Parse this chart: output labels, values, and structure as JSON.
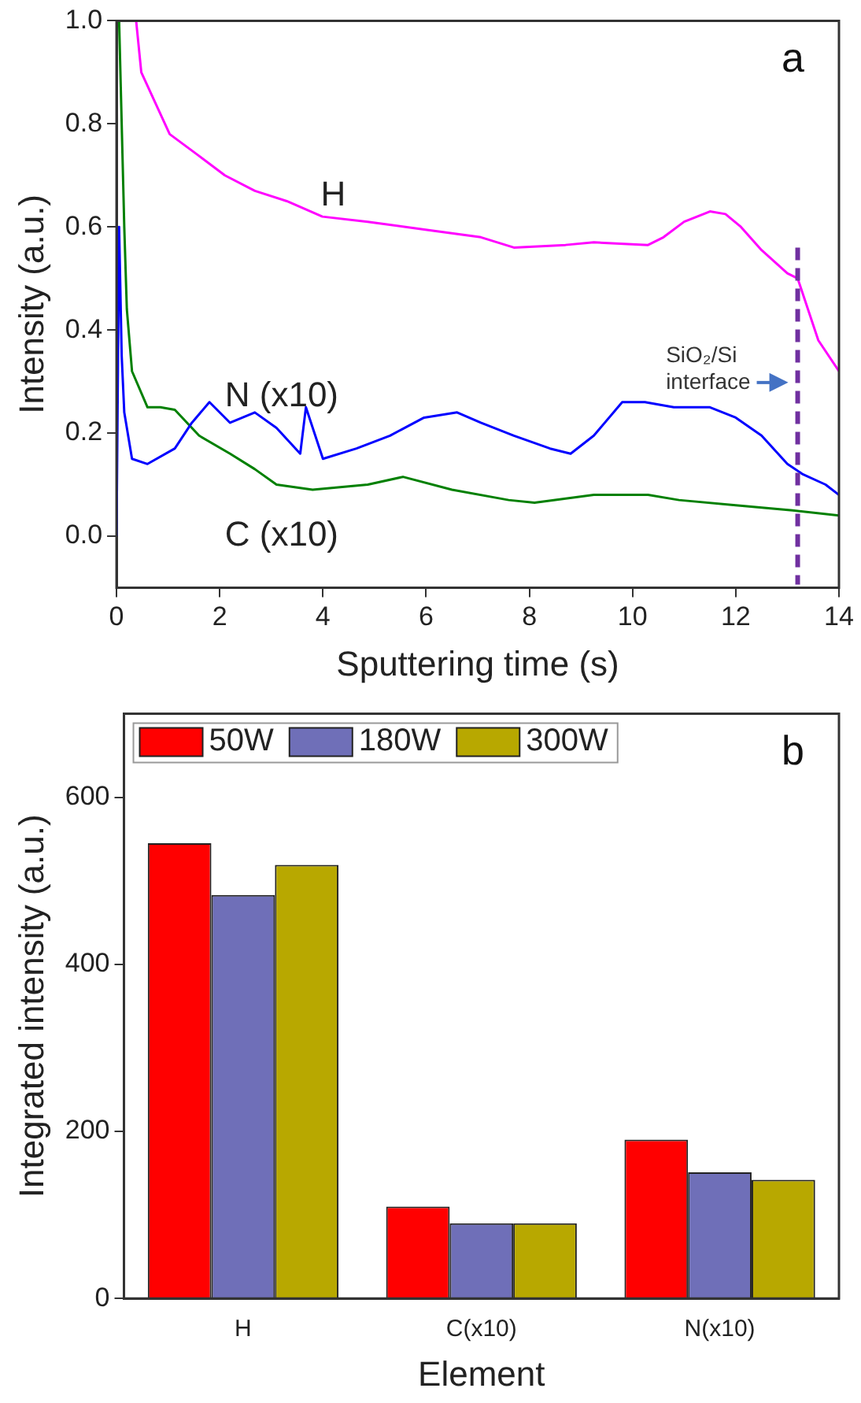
{
  "chart_data": [
    {
      "type": "line",
      "xlabel": "Sputtering time (s)",
      "ylabel": "Intensity (a.u.)",
      "annotations": [
        "a"
      ],
      "xlim": [
        0,
        14
      ],
      "ylim": [
        -0.1,
        1.0
      ],
      "xticks": [
        0,
        2,
        4,
        6,
        8,
        10,
        12,
        14
      ],
      "yticks": [
        {
          "value": 0,
          "label": "0.0"
        },
        0.2,
        0.4,
        0.6,
        0.8,
        {
          "value": 1,
          "label": "1.0"
        }
      ],
      "grid": false,
      "legend": false,
      "marker": "none",
      "line_style": "solid",
      "ref_lines": [
        {
          "axis": "x",
          "value": 13.2,
          "label": "SiO₂/Si interface",
          "color": "#7030a0",
          "line_style": "dashed"
        }
      ],
      "series": [
        {
          "name": "H",
          "color": "#ff00ff",
          "x": [
            0.38,
            0.48,
            1.03,
            1.57,
            2.1,
            2.68,
            3.3,
            3.99,
            4.87,
            5.96,
            7.06,
            7.7,
            8.7,
            9.25,
            10.3,
            10.6,
            11.0,
            11.5,
            11.8,
            12.1,
            12.5,
            13.0,
            13.2,
            13.6,
            14.0
          ],
          "values": [
            1.0,
            0.9,
            0.78,
            0.74,
            0.7,
            0.67,
            0.65,
            0.62,
            0.61,
            0.595,
            0.58,
            0.56,
            0.565,
            0.57,
            0.565,
            0.58,
            0.61,
            0.63,
            0.625,
            0.6,
            0.555,
            0.51,
            0.5,
            0.38,
            0.32
          ]
        },
        {
          "name": "N (x10)",
          "color": "#0000ff",
          "x": [
            0.0,
            0.05,
            0.1,
            0.15,
            0.3,
            0.6,
            1.13,
            1.46,
            1.8,
            2.2,
            2.68,
            3.1,
            3.56,
            3.67,
            4.0,
            4.65,
            5.3,
            5.96,
            6.6,
            7.06,
            7.7,
            8.4,
            8.8,
            9.25,
            9.8,
            10.24,
            10.8,
            11.5,
            12.0,
            12.5,
            13.0,
            13.3,
            13.74,
            14.0
          ],
          "values": [
            0.0,
            0.6,
            0.35,
            0.24,
            0.15,
            0.14,
            0.17,
            0.22,
            0.26,
            0.22,
            0.24,
            0.21,
            0.16,
            0.25,
            0.15,
            0.17,
            0.195,
            0.23,
            0.24,
            0.22,
            0.195,
            0.17,
            0.16,
            0.195,
            0.26,
            0.26,
            0.25,
            0.25,
            0.23,
            0.195,
            0.14,
            0.12,
            0.1,
            0.08
          ]
        },
        {
          "name": "C (x10)",
          "color": "#008000",
          "x": [
            0.05,
            0.15,
            0.2,
            0.3,
            0.6,
            0.85,
            1.13,
            1.6,
            2.2,
            2.68,
            3.1,
            3.8,
            4.87,
            5.55,
            6.5,
            7.6,
            8.1,
            9.25,
            10.3,
            10.9,
            12.0,
            13.1,
            14.0
          ],
          "values": [
            1.0,
            0.6,
            0.44,
            0.32,
            0.25,
            0.25,
            0.245,
            0.195,
            0.16,
            0.13,
            0.1,
            0.09,
            0.1,
            0.115,
            0.09,
            0.07,
            0.065,
            0.08,
            0.08,
            0.07,
            0.06,
            0.05,
            0.04
          ]
        }
      ]
    },
    {
      "type": "bar",
      "xlabel": "Element",
      "ylabel": "Integrated intensity (a.u.)",
      "annotations": [
        "b"
      ],
      "categories": [
        "H",
        "C(x10)",
        "N(x10)"
      ],
      "ylim": [
        0,
        700
      ],
      "yticks": [
        0,
        200,
        400,
        600
      ],
      "grid": false,
      "legend": "top left",
      "series": [
        {
          "name": "50W",
          "color": "#ff0000",
          "values": [
            545,
            110,
            190
          ]
        },
        {
          "name": "180W",
          "color": "#6f6fb8",
          "values": [
            483,
            90,
            151
          ]
        },
        {
          "name": "300W",
          "color": "#b8a800",
          "values": [
            519,
            90,
            142
          ]
        }
      ]
    }
  ]
}
